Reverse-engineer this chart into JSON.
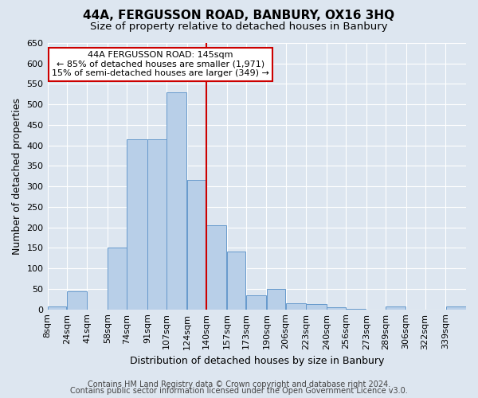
{
  "title": "44A, FERGUSSON ROAD, BANBURY, OX16 3HQ",
  "subtitle": "Size of property relative to detached houses in Banbury",
  "xlabel": "Distribution of detached houses by size in Banbury",
  "ylabel": "Number of detached properties",
  "bar_labels": [
    "8sqm",
    "24sqm",
    "41sqm",
    "58sqm",
    "74sqm",
    "91sqm",
    "107sqm",
    "124sqm",
    "140sqm",
    "157sqm",
    "173sqm",
    "190sqm",
    "206sqm",
    "223sqm",
    "240sqm",
    "256sqm",
    "273sqm",
    "289sqm",
    "306sqm",
    "322sqm",
    "339sqm"
  ],
  "bar_values": [
    8,
    45,
    0,
    150,
    415,
    415,
    530,
    315,
    205,
    142,
    35,
    50,
    15,
    13,
    5,
    2,
    0,
    7,
    0,
    0,
    8
  ],
  "bar_color": "#b8cfe8",
  "bar_edge_color": "#6699cc",
  "bin_edges": [
    8,
    24,
    41,
    58,
    74,
    91,
    107,
    124,
    140,
    157,
    173,
    190,
    206,
    223,
    240,
    256,
    273,
    289,
    306,
    322,
    339,
    356
  ],
  "ylim": [
    0,
    650
  ],
  "yticks": [
    0,
    50,
    100,
    150,
    200,
    250,
    300,
    350,
    400,
    450,
    500,
    550,
    600,
    650
  ],
  "annotation_text": "44A FERGUSSON ROAD: 145sqm\n← 85% of detached houses are smaller (1,971)\n15% of semi-detached houses are larger (349) →",
  "annotation_box_facecolor": "#ffffff",
  "annotation_box_edge": "#cc0000",
  "vline_color": "#cc0000",
  "vline_x": 140,
  "footer_line1": "Contains HM Land Registry data © Crown copyright and database right 2024.",
  "footer_line2": "Contains public sector information licensed under the Open Government Licence v3.0.",
  "background_color": "#dde6f0",
  "plot_bg_color": "#dde6f0",
  "grid_color": "#ffffff",
  "title_fontsize": 11,
  "subtitle_fontsize": 9.5,
  "axis_label_fontsize": 9,
  "tick_fontsize": 8,
  "annotation_fontsize": 8,
  "footer_fontsize": 7
}
